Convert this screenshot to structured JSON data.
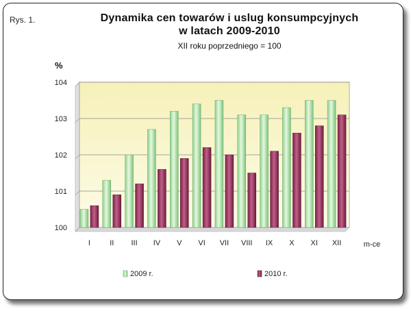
{
  "figure_label": "Rys. 1.",
  "chart_data": {
    "type": "bar",
    "title_line1": "Dynamika cen towarów i uslug konsumpcyjnych",
    "title_line2": "w latach 2009-2010",
    "subtitle": "XII roku poprzedniego = 100",
    "ylabel": "%",
    "xlabel": "m-ce",
    "ylim": [
      100,
      104
    ],
    "yticks": [
      100,
      101,
      102,
      103,
      104
    ],
    "categories": [
      "I",
      "II",
      "III",
      "IV",
      "V",
      "VI",
      "VII",
      "VIII",
      "IX",
      "X",
      "XI",
      "XII"
    ],
    "series": [
      {
        "name": "2009 r.",
        "color": "#b8e6b0",
        "values": [
          100.5,
          101.3,
          102.0,
          102.7,
          103.2,
          103.4,
          103.5,
          103.1,
          103.1,
          103.3,
          103.5,
          103.5
        ]
      },
      {
        "name": "2010 r.",
        "color": "#a04068",
        "values": [
          100.6,
          100.9,
          101.2,
          101.6,
          101.9,
          102.2,
          102.0,
          101.5,
          102.1,
          102.6,
          102.8,
          103.1
        ]
      }
    ],
    "grid": true,
    "legend": "bottom"
  }
}
